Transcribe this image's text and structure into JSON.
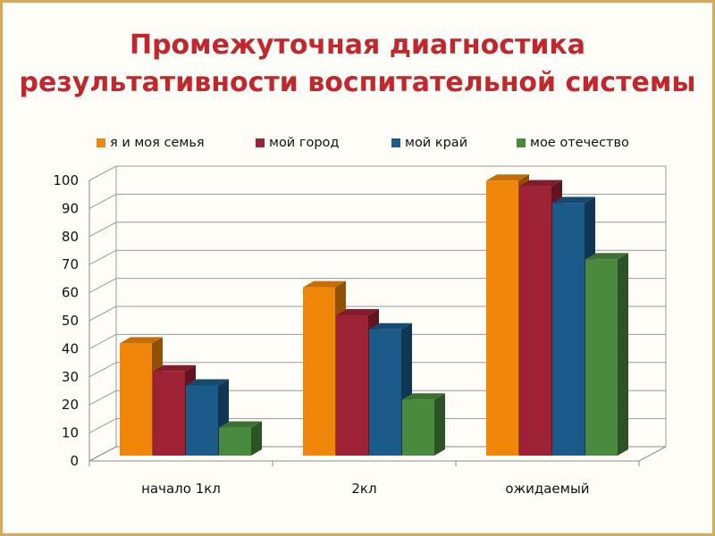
{
  "slide": {
    "title_line1": "Промежуточная диагностика",
    "title_line2": "результативности воспитательной системы"
  },
  "colors": {
    "series": [
      "#f0860a",
      "#9e2235",
      "#1c5a8a",
      "#4a8a3f"
    ],
    "title": "#c1272d",
    "frame": "#d8a85c"
  },
  "chart_data": {
    "type": "bar",
    "style": "3d-clustered-column",
    "categories": [
      "начало 1кл",
      "2кл",
      "ожидаемый"
    ],
    "series": [
      {
        "name": "я и моя семья",
        "values": [
          40,
          60,
          98
        ]
      },
      {
        "name": "мой город",
        "values": [
          30,
          50,
          96
        ]
      },
      {
        "name": "мой край",
        "values": [
          25,
          45,
          90
        ]
      },
      {
        "name": "мое отечество",
        "values": [
          10,
          20,
          70
        ]
      }
    ],
    "ylim": [
      0,
      100
    ],
    "yticks": [
      0,
      10,
      20,
      30,
      40,
      50,
      60,
      70,
      80,
      90,
      100
    ],
    "grid": true,
    "legend_position": "top"
  }
}
